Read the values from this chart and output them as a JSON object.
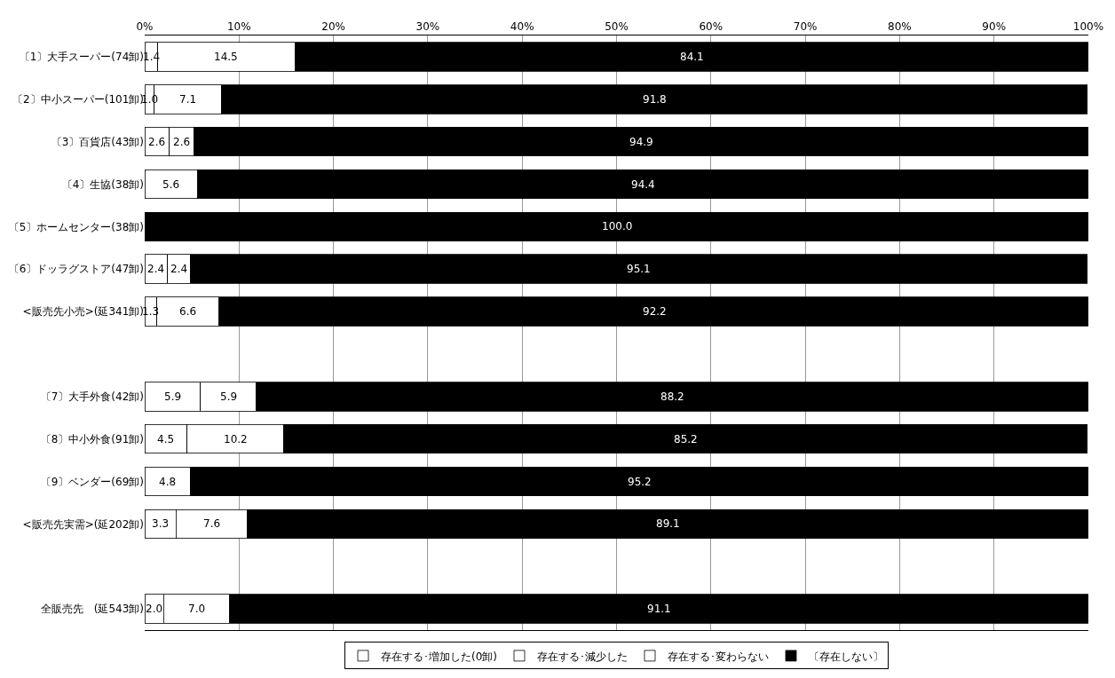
{
  "chart_data": {
    "type": "bar",
    "orientation": "horizontal",
    "stacked": true,
    "categories": [
      "〔1〕大手スーパー(74卸)",
      "〔2〕中小スーパー(101卸)",
      "〔3〕百貨店(43卸)",
      "〔4〕生協(38卸)",
      "〔5〕ホームセンター(38卸)",
      "〔6〕ドッラグストア(47卸)",
      "<販売先小売>(延341卸)",
      null,
      "〔7〕大手外食(42卸)",
      "〔8〕中小外食(91卸)",
      "〔9〕ベンダー(69卸)",
      "<販売先実需>(延202卸)",
      null,
      "全販売先　(延543卸)"
    ],
    "series": [
      {
        "name": "存在する･増加した(0卸)",
        "color": "#ffffff",
        "values": [
          0,
          0,
          0,
          0,
          0,
          0,
          0,
          null,
          0,
          0,
          0,
          0,
          null,
          0
        ],
        "value_labels": [
          null,
          null,
          null,
          null,
          null,
          null,
          null,
          null,
          null,
          null,
          null,
          null,
          null,
          null
        ]
      },
      {
        "name": "存在する･減少した",
        "color": "#ffffff",
        "values": [
          1.4,
          1.0,
          2.6,
          0,
          0,
          2.4,
          1.3,
          null,
          5.9,
          4.5,
          0,
          3.3,
          null,
          2.0
        ],
        "value_labels": [
          "1.4",
          "1.0",
          "2.6",
          null,
          null,
          "2.4",
          "1.3",
          null,
          "5.9",
          "4.5",
          null,
          "3.3",
          null,
          "2.0"
        ]
      },
      {
        "name": "存在する･変わらない",
        "color": "#ffffff",
        "values": [
          14.5,
          7.1,
          2.6,
          5.6,
          0,
          2.4,
          6.6,
          null,
          5.9,
          10.2,
          4.8,
          7.6,
          null,
          7.0
        ],
        "value_labels": [
          "14.5",
          "7.1",
          "2.6",
          "5.6",
          null,
          "2.4",
          "6.6",
          null,
          "5.9",
          "10.2",
          "4.8",
          "7.6",
          null,
          "7.0"
        ]
      },
      {
        "name": "〔存在しない〕",
        "color": "#000000",
        "values": [
          84.1,
          91.8,
          94.9,
          94.4,
          100.0,
          95.1,
          92.2,
          null,
          88.2,
          85.2,
          95.2,
          89.1,
          null,
          91.1
        ],
        "value_labels": [
          "84.1",
          "91.8",
          "94.9",
          "94.4",
          "100.0",
          "95.1",
          "92.2",
          null,
          "88.2",
          "85.2",
          "95.2",
          "89.1",
          null,
          "91.1"
        ]
      }
    ],
    "xlim": [
      0,
      100
    ],
    "xticks": [
      {
        "value": 0,
        "label": "0%"
      },
      {
        "value": 10,
        "label": "10%"
      },
      {
        "value": 20,
        "label": "20%"
      },
      {
        "value": 30,
        "label": "30%"
      },
      {
        "value": 40,
        "label": "40%"
      },
      {
        "value": 50,
        "label": "50%"
      },
      {
        "value": 60,
        "label": "60%"
      },
      {
        "value": 70,
        "label": "70%"
      },
      {
        "value": 80,
        "label": "80%"
      },
      {
        "value": 90,
        "label": "90%"
      },
      {
        "value": 100,
        "label": "100%"
      }
    ],
    "grid": "x",
    "legend": "bottom"
  }
}
